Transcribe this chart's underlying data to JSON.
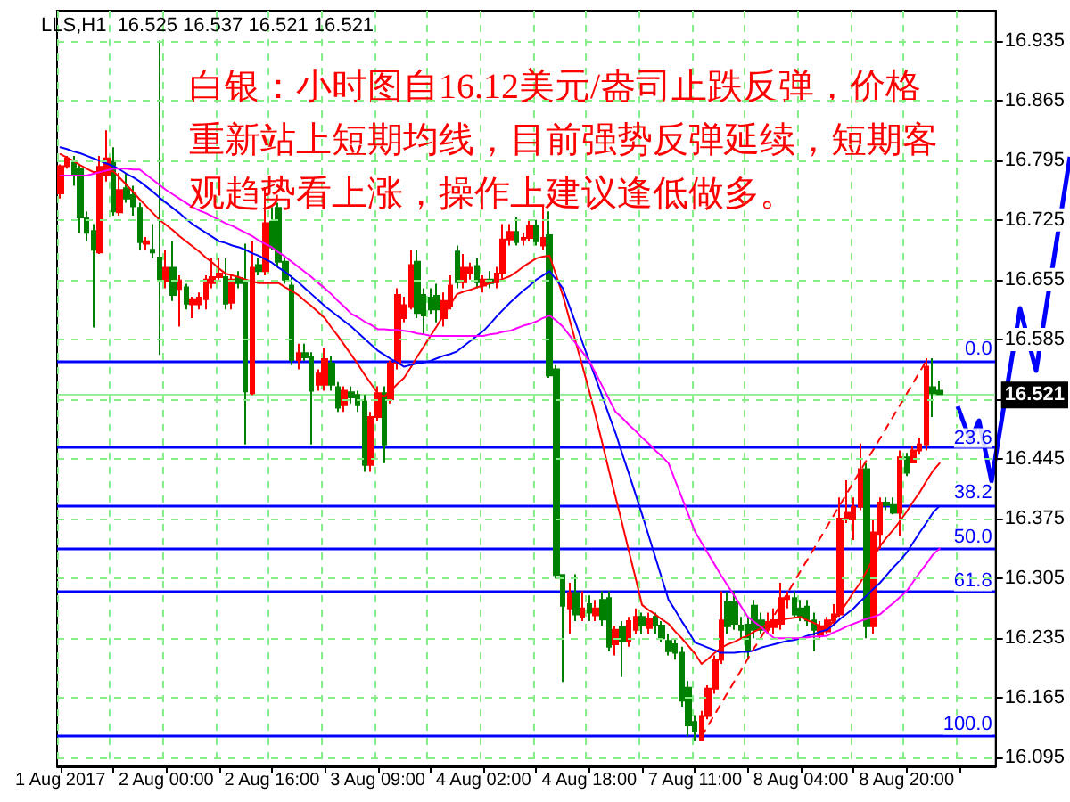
{
  "chart_data": {
    "type": "candlestick",
    "title": "LLS,H1  16.525 16.537 16.521 16.521",
    "annotations": [
      "白银：小时图自16.12美元/盎司止跌反弹，价格重新站上短期均线，目前强势反弹延续，短期客观趋势看上涨，操作上建议逢低做多。",
      {
        "text": "0.0",
        "y": 16.56
      },
      {
        "text": "23.6",
        "y": 16.456
      },
      {
        "text": "38.2",
        "y": 16.392
      },
      {
        "text": "50.0",
        "y": 16.34
      },
      {
        "text": "61.8",
        "y": 16.288
      },
      {
        "text": "100.0",
        "y": 16.12
      }
    ],
    "categories": [
      "1 Aug 2017",
      null,
      null,
      null,
      null,
      null,
      null,
      null,
      null,
      null,
      null,
      null,
      null,
      null,
      null,
      null,
      "2 Aug 00:00",
      null,
      null,
      null,
      null,
      null,
      null,
      null,
      null,
      null,
      null,
      null,
      null,
      null,
      null,
      null,
      "2 Aug 16:00",
      null,
      null,
      null,
      null,
      null,
      null,
      null,
      null,
      null,
      null,
      null,
      null,
      null,
      null,
      null,
      "3 Aug 09:00",
      null,
      null,
      null,
      null,
      null,
      null,
      null,
      null,
      null,
      null,
      null,
      null,
      null,
      null,
      null,
      "4 Aug 02:00",
      null,
      null,
      null,
      null,
      null,
      null,
      null,
      null,
      null,
      null,
      null,
      null,
      null,
      null,
      null,
      "4 Aug 18:00",
      null,
      null,
      null,
      null,
      null,
      null,
      null,
      null,
      null,
      null,
      null,
      null,
      null,
      null,
      null,
      "7 Aug 11:00",
      null,
      null,
      null,
      null,
      null,
      null,
      null,
      null,
      null,
      null,
      null,
      null,
      null,
      null,
      null,
      "8 Aug 04:00",
      null,
      null,
      null,
      null,
      null,
      null,
      null,
      null,
      null,
      null,
      null,
      null,
      null,
      null,
      null,
      "8 Aug 20:00",
      null,
      null,
      null,
      null,
      null,
      null,
      null,
      null,
      null,
      null,
      null,
      null,
      null
    ],
    "colors": [
      "#ff0000",
      "#ff0000",
      "#008000",
      "#008000",
      "#008000",
      "#008000",
      "#ff0000",
      "#ff0000",
      "#008000",
      "#ff0000",
      "#008000",
      "#008000",
      "#008000",
      "#ff0000",
      "#008000",
      "#008000",
      "#ff0000",
      "#008000",
      "#ff0000",
      "#008000",
      "#ff0000",
      "#ff0000",
      "#ff0000",
      "#ff0000",
      "#ff0000",
      "#008000",
      "#ff0000",
      "#008000",
      "#008000",
      "#ff0000",
      "#008000",
      "#ff0000",
      "#008000",
      "#008000",
      "#008000",
      "#008000",
      "#ff0000",
      "#008000",
      "#008000",
      "#ff0000",
      "#ff0000",
      "#008000",
      "#008000",
      "#ff0000",
      "#008000",
      "#008000",
      "#008000",
      "#ff0000",
      "#ff0000",
      "#008000",
      "#ff0000",
      "#ff0000",
      "#ff0000",
      "#ff0000",
      "#008000",
      "#008000",
      "#008000",
      "#008000",
      "#ff0000",
      "#ff0000",
      "#008000",
      "#ff0000",
      "#ff0000",
      "#008000",
      "#ff0000",
      "#008000",
      "#ff0000",
      "#ff0000",
      "#ff0000",
      "#008000",
      "#ff0000",
      "#ff0000",
      "#008000",
      "#ff0000",
      "#008000",
      "#008000",
      "#008000",
      "#ff0000",
      "#008000",
      "#ff0000",
      "#008000",
      "#ff0000",
      "#008000",
      "#008000",
      "#ff0000",
      "#008000",
      "#ff0000",
      "#ff0000",
      "#008000",
      "#ff0000",
      "#008000",
      "#008000",
      "#008000",
      "#008000",
      "#008000",
      "#008000",
      "#008000",
      "#ff0000",
      "#ff0000",
      "#ff0000",
      "#ff0000",
      "#008000",
      "#008000",
      "#008000",
      "#008000",
      "#008000",
      "#008000",
      "#ff0000",
      "#ff0000",
      "#ff0000",
      "#ff0000",
      "#008000",
      "#008000",
      "#008000",
      "#008000",
      "#ff0000",
      "#ff0000",
      "#ff0000",
      "#ff0000",
      "#ff0000",
      "#ff0000",
      "#ff0000",
      "#008000",
      "#ff0000",
      "#ff0000",
      "#008000",
      "#008000",
      "#ff0000",
      "#008000",
      "#ff0000",
      "#ff0000",
      "#ff0000",
      "#008000",
      "#008000",
      null,
      null,
      null,
      null,
      null,
      null,
      null,
      null
    ],
    "ohlc": [
      [
        16.756,
        16.79,
        16.75,
        16.788
      ],
      [
        16.788,
        16.8,
        16.785,
        16.797
      ],
      [
        16.793,
        16.8,
        16.765,
        16.778
      ],
      [
        16.785,
        16.79,
        16.71,
        16.728
      ],
      [
        16.727,
        16.735,
        16.7,
        16.71
      ],
      [
        16.712,
        16.72,
        16.599,
        16.69
      ],
      [
        16.687,
        16.8,
        16.685,
        16.787
      ],
      [
        16.778,
        16.83,
        16.77,
        16.797
      ],
      [
        16.793,
        16.81,
        16.73,
        16.735
      ],
      [
        16.734,
        16.78,
        16.73,
        16.76
      ],
      [
        16.762,
        16.78,
        16.745,
        16.75
      ],
      [
        16.754,
        16.765,
        16.73,
        16.741
      ],
      [
        16.739,
        16.745,
        16.69,
        16.699
      ],
      [
        16.697,
        16.705,
        16.69,
        16.7
      ],
      [
        16.69,
        16.72,
        16.68,
        16.687
      ],
      [
        16.681,
        16.935,
        16.567,
        16.653
      ],
      [
        16.653,
        16.69,
        16.645,
        16.669
      ],
      [
        16.669,
        16.7,
        16.63,
        16.637
      ],
      [
        16.644,
        16.66,
        16.6,
        16.654
      ],
      [
        16.646,
        16.65,
        16.62,
        16.627
      ],
      [
        16.626,
        16.635,
        16.61,
        16.632
      ],
      [
        16.626,
        16.64,
        16.62,
        16.634
      ],
      [
        16.632,
        16.66,
        16.62,
        16.655
      ],
      [
        16.651,
        16.68,
        16.645,
        16.658
      ],
      [
        16.658,
        16.68,
        16.655,
        16.662
      ],
      [
        16.658,
        16.68,
        16.62,
        16.627
      ],
      [
        16.628,
        16.66,
        16.62,
        16.655
      ],
      [
        16.657,
        16.665,
        16.645,
        16.651
      ],
      [
        16.651,
        16.697,
        16.462,
        16.524
      ],
      [
        16.522,
        16.7,
        16.52,
        16.669
      ],
      [
        16.672,
        16.68,
        16.66,
        16.665
      ],
      [
        16.665,
        16.763,
        16.66,
        16.721
      ],
      [
        16.723,
        16.74,
        16.69,
        16.693
      ],
      [
        16.739,
        16.745,
        16.67,
        16.676
      ],
      [
        16.676,
        16.68,
        16.65,
        16.655
      ],
      [
        16.648,
        16.66,
        16.555,
        16.561
      ],
      [
        16.561,
        16.58,
        16.55,
        16.569
      ],
      [
        16.569,
        16.58,
        16.56,
        16.564
      ],
      [
        16.564,
        16.57,
        16.462,
        16.525
      ],
      [
        16.532,
        16.55,
        16.525,
        16.545
      ],
      [
        16.532,
        16.575,
        16.525,
        16.562
      ],
      [
        16.557,
        16.565,
        16.525,
        16.532
      ],
      [
        16.529,
        16.535,
        16.5,
        16.505
      ],
      [
        16.508,
        16.53,
        16.5,
        16.525
      ],
      [
        16.523,
        16.53,
        16.51,
        16.517
      ],
      [
        16.52,
        16.525,
        16.5,
        16.508
      ],
      [
        16.512,
        16.52,
        16.43,
        16.438
      ],
      [
        16.438,
        16.5,
        16.43,
        16.494
      ],
      [
        16.494,
        16.53,
        16.49,
        16.522
      ],
      [
        16.522,
        16.53,
        16.44,
        16.462
      ],
      [
        16.515,
        16.56,
        16.51,
        16.557
      ],
      [
        16.557,
        16.645,
        16.55,
        16.637
      ],
      [
        16.61,
        16.635,
        16.605,
        16.625
      ],
      [
        16.623,
        16.69,
        16.62,
        16.672
      ],
      [
        16.676,
        16.69,
        16.61,
        16.616
      ],
      [
        16.637,
        16.645,
        16.59,
        16.613
      ],
      [
        16.634,
        16.645,
        16.615,
        16.62
      ],
      [
        16.636,
        16.65,
        16.605,
        16.62
      ],
      [
        16.61,
        16.64,
        16.6,
        16.63
      ],
      [
        16.624,
        16.66,
        16.62,
        16.648
      ],
      [
        16.688,
        16.695,
        16.645,
        16.652
      ],
      [
        16.652,
        16.685,
        16.645,
        16.669
      ],
      [
        16.662,
        16.675,
        16.655,
        16.669
      ],
      [
        16.671,
        16.68,
        16.645,
        16.652
      ],
      [
        16.648,
        16.66,
        16.64,
        16.655
      ],
      [
        16.655,
        16.665,
        16.645,
        16.651
      ],
      [
        16.652,
        16.67,
        16.645,
        16.662
      ],
      [
        16.662,
        16.72,
        16.655,
        16.702
      ],
      [
        16.702,
        16.72,
        16.695,
        16.711
      ],
      [
        16.711,
        16.728,
        16.695,
        16.699
      ],
      [
        16.702,
        16.71,
        16.695,
        16.704
      ],
      [
        16.704,
        16.725,
        16.7,
        16.718
      ],
      [
        16.718,
        16.725,
        16.695,
        16.7
      ],
      [
        16.695,
        16.741,
        16.69,
        16.704
      ],
      [
        16.707,
        16.735,
        16.54,
        16.543
      ],
      [
        16.55,
        16.555,
        16.305,
        16.309
      ],
      [
        16.309,
        16.31,
        16.184,
        16.273
      ],
      [
        16.27,
        16.3,
        16.24,
        16.288
      ],
      [
        16.288,
        16.31,
        16.255,
        16.263
      ],
      [
        16.26,
        16.29,
        16.255,
        16.27
      ],
      [
        16.275,
        16.285,
        16.255,
        16.265
      ],
      [
        16.262,
        16.28,
        16.255,
        16.27
      ],
      [
        16.28,
        16.29,
        16.25,
        16.257
      ],
      [
        16.282,
        16.29,
        16.22,
        16.225
      ],
      [
        16.228,
        16.25,
        16.215,
        16.245
      ],
      [
        16.248,
        16.255,
        16.19,
        16.232
      ],
      [
        16.232,
        16.26,
        16.225,
        16.255
      ],
      [
        16.245,
        16.27,
        16.24,
        16.26
      ],
      [
        16.26,
        16.265,
        16.24,
        16.25
      ],
      [
        16.247,
        16.265,
        16.24,
        16.258
      ],
      [
        16.26,
        16.265,
        16.24,
        16.25
      ],
      [
        16.25,
        16.255,
        16.23,
        16.235
      ],
      [
        16.232,
        16.24,
        16.215,
        16.22
      ],
      [
        16.228,
        16.235,
        16.21,
        16.218
      ],
      [
        16.218,
        16.225,
        16.155,
        16.162
      ],
      [
        16.177,
        16.185,
        16.12,
        16.133
      ],
      [
        16.137,
        16.145,
        16.115,
        16.126
      ],
      [
        16.116,
        16.15,
        16.116,
        16.144
      ],
      [
        16.144,
        16.18,
        16.14,
        16.176
      ],
      [
        16.176,
        16.215,
        16.17,
        16.21
      ],
      [
        16.21,
        16.29,
        16.205,
        16.256
      ],
      [
        16.277,
        16.289,
        16.24,
        16.249
      ],
      [
        16.277,
        16.29,
        16.245,
        16.252
      ],
      [
        16.25,
        16.26,
        16.235,
        16.245
      ],
      [
        16.251,
        16.26,
        16.21,
        16.221
      ],
      [
        16.273,
        16.28,
        16.235,
        16.245
      ],
      [
        16.256,
        16.265,
        16.24,
        16.245
      ],
      [
        16.245,
        16.265,
        16.24,
        16.254
      ],
      [
        16.248,
        16.27,
        16.24,
        16.256
      ],
      [
        16.252,
        16.3,
        16.245,
        16.282
      ],
      [
        16.281,
        16.29,
        16.27,
        16.284
      ],
      [
        16.282,
        16.29,
        16.26,
        16.263
      ],
      [
        16.27,
        16.28,
        16.255,
        16.26
      ],
      [
        16.272,
        16.28,
        16.25,
        16.256
      ],
      [
        16.256,
        16.265,
        16.22,
        16.245
      ],
      [
        16.239,
        16.255,
        16.235,
        16.249
      ],
      [
        16.243,
        16.26,
        16.24,
        16.256
      ],
      [
        16.256,
        16.275,
        16.25,
        16.263
      ],
      [
        16.263,
        16.4,
        16.26,
        16.375
      ],
      [
        16.375,
        16.42,
        16.37,
        16.382
      ],
      [
        16.375,
        16.4,
        16.35,
        16.389
      ],
      [
        16.389,
        16.463,
        16.385,
        16.433
      ],
      [
        16.433,
        16.44,
        16.235,
        16.249
      ],
      [
        16.249,
        16.375,
        16.24,
        16.359
      ],
      [
        16.357,
        16.4,
        16.34,
        16.394
      ],
      [
        16.394,
        16.4,
        16.385,
        16.391
      ],
      [
        16.391,
        16.4,
        16.38,
        16.382
      ],
      [
        16.382,
        16.455,
        16.355,
        16.447
      ],
      [
        16.447,
        16.452,
        16.425,
        16.429
      ],
      [
        16.441,
        16.46,
        16.44,
        16.455
      ],
      [
        16.455,
        16.47,
        16.45,
        16.462
      ],
      [
        16.462,
        16.563,
        16.455,
        16.553
      ],
      [
        16.529,
        16.563,
        16.494,
        16.522
      ],
      [
        16.525,
        16.537,
        16.521,
        16.521
      ],
      null,
      null,
      null,
      null,
      null,
      null,
      null,
      null
    ],
    "series": [
      {
        "type": "line",
        "color": "#ff0000",
        "values": [
          16.802,
          16.798,
          16.794,
          16.789,
          16.785,
          16.781,
          16.781,
          16.782,
          16.782,
          16.774,
          16.766,
          16.758,
          16.749,
          16.741,
          16.733,
          16.725,
          16.719,
          16.713,
          16.706,
          16.7,
          16.694,
          16.688,
          16.681,
          16.675,
          16.668,
          16.662,
          16.66,
          16.658,
          16.655,
          16.653,
          16.651,
          16.651,
          16.651,
          16.651,
          16.646,
          16.642,
          16.637,
          16.63,
          16.624,
          16.617,
          16.61,
          16.599,
          16.589,
          16.578,
          16.567,
          16.556,
          16.544,
          16.533,
          16.522,
          16.518,
          16.525,
          16.533,
          16.54,
          16.552,
          16.565,
          16.577,
          16.589,
          16.601,
          16.614,
          16.626,
          16.638,
          16.641,
          16.643,
          16.646,
          16.648,
          16.651,
          16.653,
          16.656,
          16.659,
          16.664,
          16.67,
          16.675,
          16.68,
          16.682,
          16.683,
          16.66,
          16.637,
          16.609,
          16.581,
          16.553,
          16.525,
          16.494,
          16.463,
          16.431,
          16.4,
          16.369,
          16.337,
          16.306,
          16.274,
          16.268,
          16.263,
          16.257,
          16.252,
          16.243,
          16.235,
          16.226,
          16.217,
          16.205,
          16.211,
          16.218,
          16.224,
          16.228,
          16.231,
          16.235,
          16.238,
          16.243,
          16.247,
          16.252,
          16.256,
          16.257,
          16.258,
          16.259,
          16.26,
          16.256,
          16.253,
          16.249,
          16.245,
          16.256,
          16.266,
          16.277,
          16.289,
          16.3,
          16.314,
          16.329,
          16.343,
          16.353,
          16.362,
          16.372,
          16.383,
          16.395,
          16.406,
          16.419,
          16.431,
          16.44,
          null,
          null,
          null,
          null,
          null,
          null,
          null,
          null
        ]
      },
      {
        "type": "line",
        "color": "#0000ff",
        "values": [
          16.81,
          16.808,
          16.805,
          16.803,
          16.8,
          16.797,
          16.794,
          16.791,
          16.788,
          16.784,
          16.779,
          16.775,
          16.77,
          16.764,
          16.758,
          16.751,
          16.745,
          16.739,
          16.733,
          16.726,
          16.72,
          16.715,
          16.71,
          16.705,
          16.7,
          16.698,
          16.695,
          16.693,
          16.69,
          16.686,
          16.683,
          16.679,
          16.675,
          16.669,
          16.664,
          16.658,
          16.652,
          16.645,
          16.638,
          16.631,
          16.624,
          16.618,
          16.612,
          16.606,
          16.6,
          16.593,
          16.586,
          16.579,
          16.572,
          16.567,
          16.562,
          16.558,
          16.553,
          16.555,
          16.557,
          16.558,
          16.56,
          16.563,
          16.566,
          16.568,
          16.571,
          16.577,
          16.583,
          16.589,
          16.595,
          16.603,
          16.612,
          16.62,
          16.628,
          16.635,
          16.642,
          16.648,
          16.655,
          16.66,
          16.665,
          16.655,
          16.645,
          16.624,
          16.603,
          16.581,
          16.56,
          16.539,
          16.518,
          16.496,
          16.475,
          16.451,
          16.428,
          16.404,
          16.38,
          16.355,
          16.33,
          16.305,
          16.28,
          16.268,
          16.255,
          16.243,
          16.23,
          16.227,
          16.224,
          16.221,
          16.218,
          16.218,
          16.218,
          16.219,
          16.219,
          16.221,
          16.224,
          16.226,
          16.228,
          16.23,
          16.232,
          16.233,
          16.235,
          16.238,
          16.24,
          16.243,
          16.245,
          16.251,
          16.258,
          16.264,
          16.27,
          16.278,
          16.285,
          16.293,
          16.3,
          16.309,
          16.318,
          16.326,
          16.335,
          16.347,
          16.359,
          16.37,
          16.382,
          16.39,
          null,
          null,
          null,
          null,
          null,
          null,
          null,
          null
        ]
      },
      {
        "type": "line",
        "color": "#ff00ff",
        "values": [
          16.777,
          16.777,
          16.777,
          16.777,
          16.777,
          16.779,
          16.781,
          16.783,
          16.785,
          16.785,
          16.785,
          16.784,
          16.784,
          16.778,
          16.772,
          16.766,
          16.76,
          16.755,
          16.75,
          16.745,
          16.74,
          16.736,
          16.733,
          16.729,
          16.725,
          16.721,
          16.718,
          16.714,
          16.71,
          16.706,
          16.701,
          16.697,
          16.693,
          16.687,
          16.682,
          16.676,
          16.67,
          16.664,
          16.658,
          16.651,
          16.645,
          16.638,
          16.63,
          16.623,
          16.615,
          16.611,
          16.606,
          16.602,
          16.597,
          16.597,
          16.596,
          16.596,
          16.595,
          16.594,
          16.592,
          16.591,
          16.589,
          16.589,
          16.589,
          16.589,
          16.589,
          16.589,
          16.589,
          16.589,
          16.589,
          16.591,
          16.592,
          16.594,
          16.595,
          16.598,
          16.601,
          16.603,
          16.606,
          16.61,
          16.613,
          16.607,
          16.6,
          16.59,
          16.58,
          16.57,
          16.56,
          16.545,
          16.53,
          16.515,
          16.5,
          16.493,
          16.485,
          16.478,
          16.47,
          16.463,
          16.455,
          16.448,
          16.44,
          16.42,
          16.4,
          16.38,
          16.36,
          16.347,
          16.334,
          16.321,
          16.308,
          16.296,
          16.284,
          16.272,
          16.26,
          16.254,
          16.248,
          16.241,
          16.235,
          16.235,
          16.235,
          16.235,
          16.235,
          16.236,
          16.237,
          16.237,
          16.238,
          16.242,
          16.245,
          16.249,
          16.252,
          16.255,
          16.258,
          16.26,
          16.263,
          16.27,
          16.276,
          16.283,
          16.29,
          16.301,
          16.312,
          16.322,
          16.333,
          16.34,
          null,
          null,
          null,
          null,
          null,
          null,
          null,
          null
        ]
      },
      {
        "type": "line",
        "color": "#ff0000",
        "line_style": "dashed",
        "values": [
          null,
          null,
          null,
          null,
          null,
          null,
          null,
          null,
          null,
          null,
          null,
          null,
          null,
          null,
          null,
          null,
          null,
          null,
          null,
          null,
          null,
          null,
          null,
          null,
          null,
          null,
          null,
          null,
          null,
          null,
          null,
          null,
          null,
          null,
          null,
          null,
          null,
          null,
          null,
          null,
          null,
          null,
          null,
          null,
          null,
          null,
          null,
          null,
          null,
          null,
          null,
          null,
          null,
          null,
          null,
          null,
          null,
          null,
          null,
          null,
          null,
          null,
          null,
          null,
          null,
          null,
          null,
          null,
          null,
          null,
          null,
          null,
          null,
          null,
          null,
          null,
          null,
          null,
          null,
          null,
          null,
          null,
          null,
          null,
          null,
          null,
          null,
          null,
          null,
          null,
          null,
          null,
          null,
          null,
          null,
          null,
          null,
          16.12,
          16.133,
          16.146,
          16.159,
          16.172,
          16.185,
          16.198,
          16.211,
          16.224,
          16.236,
          16.249,
          16.262,
          16.275,
          16.288,
          16.301,
          16.314,
          16.327,
          16.34,
          16.353,
          16.366,
          16.379,
          16.392,
          16.405,
          16.418,
          16.431,
          16.444,
          16.456,
          16.469,
          16.482,
          16.495,
          16.508,
          16.521,
          16.534,
          16.547,
          16.56,
          null,
          null,
          null,
          null,
          null,
          null,
          null,
          null,
          null,
          null
        ]
      }
    ],
    "ref_lines": [
      {
        "axis": "y",
        "value": 16.56,
        "color": "#0000ff"
      },
      {
        "axis": "y",
        "value": 16.456,
        "color": "#0000ff"
      },
      {
        "axis": "y",
        "value": 16.392,
        "color": "#0000ff"
      },
      {
        "axis": "y",
        "value": 16.34,
        "color": "#0000ff"
      },
      {
        "axis": "y",
        "value": 16.288,
        "color": "#0000ff"
      },
      {
        "axis": "y",
        "value": 16.12,
        "color": "#0000ff"
      },
      {
        "axis": "y",
        "value": 16.521,
        "label": "16.521",
        "color": "#99ee99"
      }
    ],
    "ylim": [
      16.085,
      16.97
    ],
    "yticks": [
      16.095,
      16.165,
      16.235,
      16.305,
      16.375,
      16.445,
      {
        "value": 16.515,
        "label": null
      },
      16.585,
      16.655,
      16.725,
      16.795,
      16.865,
      16.935
    ],
    "grid": true,
    "marker": "none"
  }
}
